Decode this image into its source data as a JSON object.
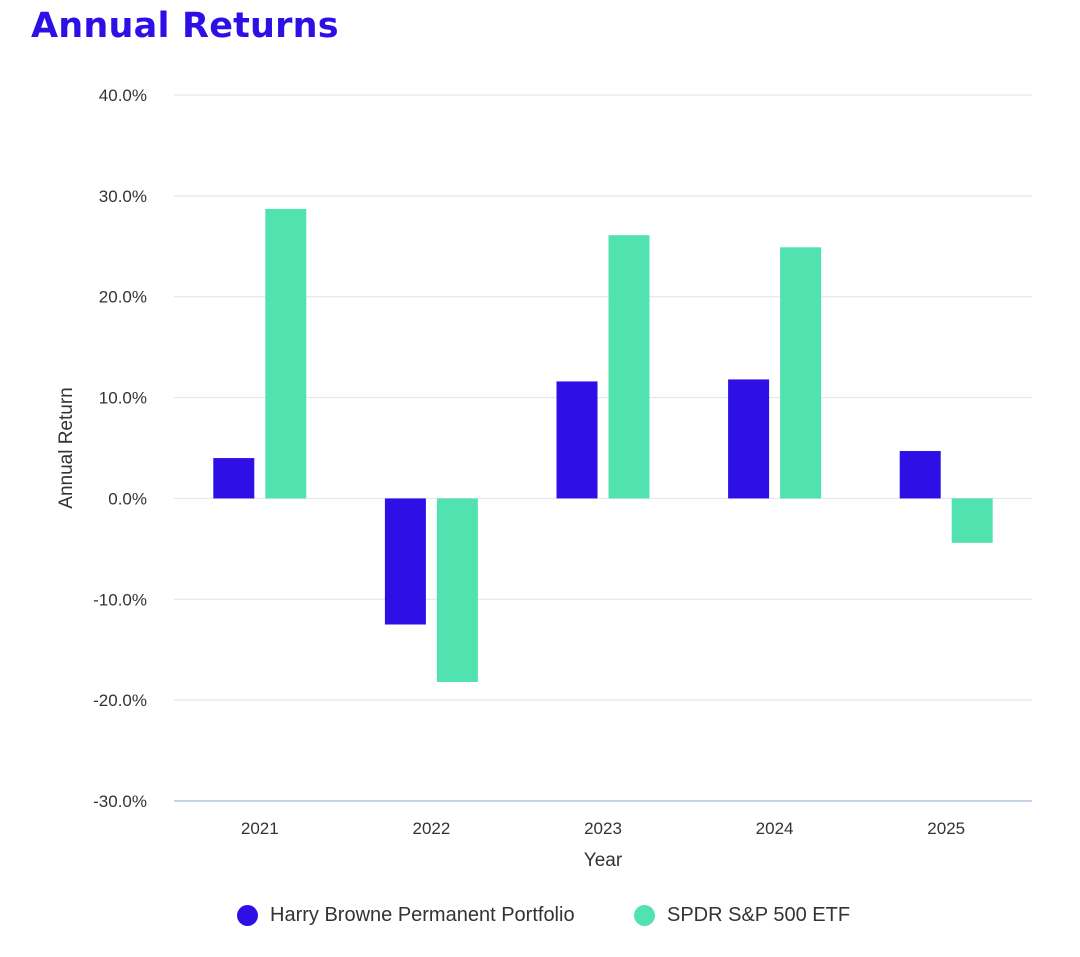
{
  "page": {
    "title": "Annual Returns"
  },
  "chart_data": {
    "type": "bar",
    "title": "Annual Returns",
    "xlabel": "Year",
    "ylabel": "Annual Return",
    "categories": [
      "2021",
      "2022",
      "2023",
      "2024",
      "2025"
    ],
    "series": [
      {
        "name": "Harry Browne Permanent Portfolio",
        "color": "#2e0fe6",
        "values": [
          4.0,
          -12.5,
          11.6,
          11.8,
          4.7
        ]
      },
      {
        "name": "SPDR S&P 500 ETF",
        "color": "#50e3b0",
        "values": [
          28.7,
          -18.2,
          26.1,
          24.9,
          -4.4
        ]
      }
    ],
    "ylim": [
      -30,
      40
    ],
    "yticks": [
      -30,
      -20,
      -10,
      0,
      10,
      20,
      30,
      40
    ],
    "ytick_labels": [
      "-30.0%",
      "-20.0%",
      "-10.0%",
      "0.0%",
      "10.0%",
      "20.0%",
      "30.0%",
      "40.0%"
    ],
    "grid": true,
    "legend_position": "bottom"
  }
}
